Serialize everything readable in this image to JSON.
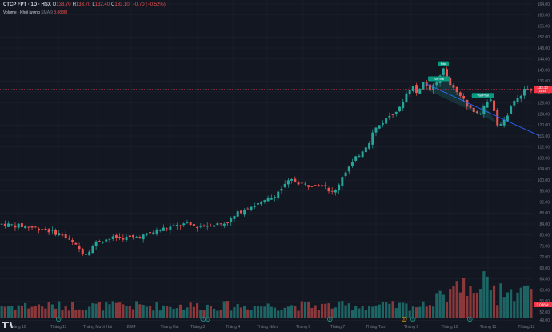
{
  "header": {
    "title": "CTCP FPT · 1D · HSX",
    "ohlc": [
      {
        "k": "O",
        "v": "133.70"
      },
      {
        "k": "H",
        "v": "133.70"
      },
      {
        "k": "L",
        "v": "132.40"
      },
      {
        "k": "C",
        "v": "133.10"
      }
    ],
    "change": "−0.70 (−0.52%)",
    "volume_label": "Volume · Khối lượng",
    "volume_sma": "SMA 9",
    "volume_value": "3.088M"
  },
  "colors": {
    "up": "#26a69a",
    "down": "#ef5350",
    "bg": "#131722",
    "grid": "#1e222d",
    "text": "#787b86",
    "trendline": "#2962ff",
    "hline": "#f23645"
  },
  "chart_data": {
    "type": "candlestick",
    "price_axis": {
      "ylim": [
        50,
        164
      ],
      "ticks": [
        "164.00",
        "160.00",
        "156.00",
        "152.00",
        "148.00",
        "144.00",
        "140.00",
        "136.00",
        "132.00",
        "128.00",
        "124.00",
        "120.00",
        "116.00",
        "112.00",
        "108.00",
        "104.00",
        "100.00",
        "96.00",
        "92.00",
        "88.00",
        "84.00",
        "80.00",
        "76.00",
        "72.00",
        "68.00",
        "64.00",
        "60.00",
        "56.00",
        "52.00",
        "49.00"
      ]
    },
    "current_price": {
      "value": 133.1,
      "label": "133.10",
      "sub": "18:44"
    },
    "volume_badge": "3.088M",
    "time_axis": [
      "Tháng 10",
      "Tháng 11",
      "Tháng Mười Hai",
      "2024",
      "Tháng Hai",
      "Tháng 3",
      "Tháng 4",
      "Tháng Năm",
      "Tháng 6",
      "Tháng 7",
      "Tháng Tám",
      "Tháng 9",
      "Tháng 10",
      "Tháng 11",
      "Tháng 12"
    ],
    "price_path": [
      [
        0,
        84
      ],
      [
        6,
        83
      ],
      [
        10,
        82
      ],
      [
        14,
        80
      ],
      [
        17,
        76
      ],
      [
        19,
        73
      ],
      [
        22,
        78
      ],
      [
        26,
        79
      ],
      [
        30,
        79
      ],
      [
        33,
        80
      ],
      [
        36,
        82
      ],
      [
        39,
        83
      ],
      [
        42,
        84
      ],
      [
        45,
        83
      ],
      [
        48,
        84
      ],
      [
        50,
        84
      ],
      [
        52,
        85
      ],
      [
        54,
        88
      ],
      [
        56,
        90
      ],
      [
        58,
        91
      ],
      [
        60,
        92
      ],
      [
        62,
        94
      ],
      [
        64,
        97
      ],
      [
        66,
        100
      ],
      [
        68,
        99
      ],
      [
        70,
        98
      ],
      [
        72,
        99
      ],
      [
        74,
        98
      ],
      [
        75,
        96
      ],
      [
        76,
        95
      ],
      [
        78,
        102
      ],
      [
        80,
        106
      ],
      [
        82,
        110
      ],
      [
        84,
        114
      ],
      [
        85,
        118
      ],
      [
        87,
        121
      ],
      [
        89,
        124
      ],
      [
        91,
        126
      ],
      [
        92,
        130
      ],
      [
        93,
        133
      ],
      [
        94,
        134
      ],
      [
        95,
        131
      ],
      [
        96,
        136
      ],
      [
        98,
        133
      ],
      [
        100,
        137
      ],
      [
        101,
        140
      ],
      [
        102,
        135
      ],
      [
        104,
        132
      ],
      [
        105,
        130
      ],
      [
        107,
        126
      ],
      [
        109,
        124
      ],
      [
        110,
        126
      ],
      [
        111,
        128
      ],
      [
        112,
        130
      ],
      [
        113,
        121
      ],
      [
        114,
        120
      ],
      [
        115,
        122
      ],
      [
        117,
        128
      ],
      [
        118,
        130
      ],
      [
        119,
        132
      ],
      [
        120,
        133
      ],
      [
        121,
        133.1
      ]
    ],
    "volume_ylim": [
      0,
      100
    ],
    "annotations": [
      {
        "text": "Vai trái",
        "x": 100,
        "price": 136.5
      },
      {
        "text": "Đầu",
        "x": 101,
        "price": 142
      },
      {
        "text": "Vai Phải",
        "x": 110,
        "price": 130.5
      }
    ],
    "trendline": {
      "x1": 97,
      "p1": 135,
      "x2": 123,
      "p2": 116
    },
    "event_markers": [
      {
        "x": 13,
        "text": "D"
      },
      {
        "x": 46,
        "text": "D"
      },
      {
        "x": 47,
        "text": "D"
      },
      {
        "x": 75,
        "text": "D"
      },
      {
        "x": 92,
        "text": "E"
      },
      {
        "x": 94,
        "text": "D"
      },
      {
        "x": 107,
        "text": "D"
      }
    ]
  }
}
